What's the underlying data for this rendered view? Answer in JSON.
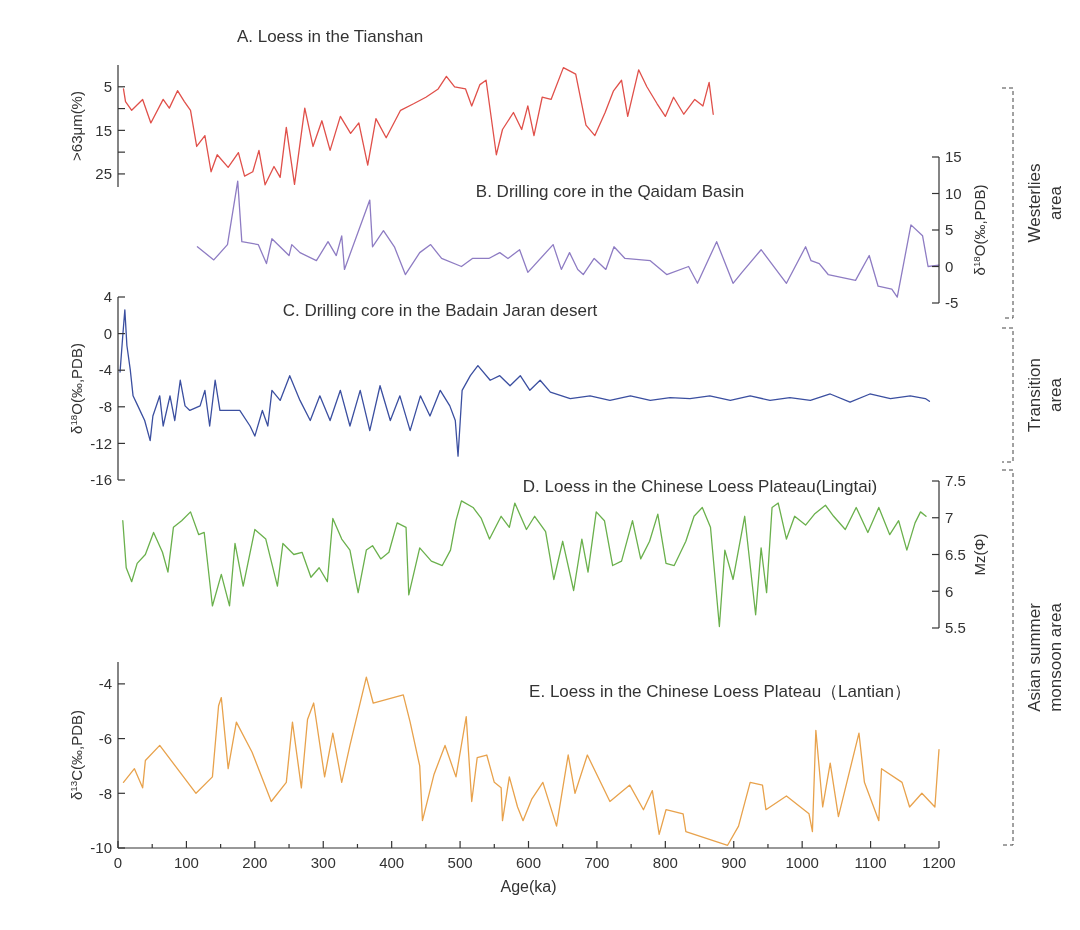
{
  "chart_data": [
    {
      "type": "line",
      "title": "A. Loess in  the Tianshan",
      "ylabel": ">63μm(%)",
      "xlim": [
        0,
        1200
      ],
      "ylim": [
        28,
        0
      ],
      "yticks": [
        5,
        {
          "value": 10,
          "label": null
        },
        15,
        {
          "value": 20,
          "label": null
        },
        25
      ],
      "tick_labels": "y",
      "series": [
        {
          "color": "#e0504a",
          "x": [
            8,
            11,
            20,
            36,
            48,
            66,
            75,
            87,
            97,
            106,
            115,
            127,
            136,
            145,
            161,
            176,
            185,
            197,
            206,
            215,
            228,
            237,
            246,
            258,
            273,
            285,
            298,
            310,
            325,
            340,
            352,
            365,
            377,
            392,
            413,
            432,
            450,
            468,
            480,
            492,
            508,
            517,
            529,
            538,
            553,
            562,
            578,
            590,
            599,
            608,
            620,
            633,
            651,
            669,
            684,
            697,
            712,
            724,
            736,
            745,
            761,
            773,
            788,
            800,
            812,
            827,
            843,
            855,
            864,
            870
          ],
          "values": [
            5.5,
            8.4,
            10.4,
            7.9,
            13.3,
            7.9,
            9.9,
            5.9,
            8.4,
            10.4,
            18.7,
            16.2,
            24.5,
            20.6,
            23.5,
            20.1,
            25.5,
            24.5,
            19.6,
            27.5,
            23.3,
            25.8,
            14.3,
            27.4,
            9.9,
            18.7,
            12.8,
            19.6,
            11.8,
            15.7,
            13.3,
            23,
            12.3,
            16.7,
            10.4,
            8.9,
            7.4,
            5.5,
            2.6,
            5,
            5.5,
            9.4,
            4.5,
            3.5,
            20.6,
            14.8,
            10.9,
            14.8,
            9.4,
            16.2,
            7.4,
            7.9,
            0.6,
            2.1,
            13.8,
            16.2,
            10.9,
            6,
            3.5,
            11.8,
            1.1,
            5,
            8.9,
            11.8,
            7.4,
            11.3,
            7.9,
            9.4,
            4,
            11.3
          ]
        }
      ]
    },
    {
      "type": "line",
      "title": "B. Drilling  core in the Qaidam Basin",
      "y2label": "δ$^{18}$O(‰,PDB)",
      "xlim": [
        0,
        1200
      ],
      "y2lim": [
        -5,
        15
      ],
      "y2ticks": [
        -5,
        0,
        5,
        10,
        15
      ],
      "tick_labels": "y",
      "annotations": [
        "Westerlies area"
      ],
      "series": [
        {
          "color": "#8e7cc3",
          "axis": "y2",
          "x": [
            116,
            140,
            160,
            175,
            181,
            205,
            217,
            225,
            250,
            254,
            266,
            290,
            307,
            319,
            327,
            331,
            368,
            372,
            388,
            404,
            420,
            441,
            457,
            473,
            502,
            518,
            542,
            558,
            570,
            587,
            599,
            636,
            648,
            660,
            672,
            680,
            696,
            713,
            725,
            741,
            778,
            802,
            834,
            847,
            875,
            899,
            912,
            940,
            977,
            1005,
            1013,
            1025,
            1038,
            1078,
            1098,
            1111,
            1131,
            1139,
            1159,
            1176,
            1184,
            1200
          ],
          "values": [
            2.7,
            0.9,
            3,
            11.7,
            3.4,
            3,
            0.4,
            3.8,
            1.5,
            3,
            1.9,
            0.8,
            3.4,
            1.5,
            4.2,
            -0.4,
            9.1,
            2.7,
            4.9,
            2.7,
            -1.1,
            1.9,
            3,
            1.1,
            0,
            1.1,
            1.1,
            1.9,
            1.1,
            2.3,
            -0.8,
            3,
            -0.4,
            1.9,
            -0.4,
            -1.1,
            1.1,
            -0.4,
            2.7,
            1.1,
            0.8,
            -1.1,
            0,
            -2.3,
            3.4,
            -2.3,
            -0.8,
            2.3,
            -2.3,
            2.7,
            0.8,
            0.4,
            -1.1,
            -1.9,
            1.5,
            -2.7,
            -3.1,
            -4.2,
            5.7,
            4.2,
            0,
            0.2
          ]
        }
      ]
    },
    {
      "type": "line",
      "title": "C. Drilling core in the Badain Jaran desert",
      "ylabel": "δ$^{18}$O(‰,PDB)",
      "xlim": [
        0,
        1200
      ],
      "ylim": [
        -16,
        4
      ],
      "yticks": [
        -16,
        -12,
        -8,
        -4,
        0,
        4
      ],
      "tick_labels": "y",
      "annotations": [
        "Transition area"
      ],
      "series": [
        {
          "color": "#3b4fa0",
          "x": [
            3,
            7,
            10,
            13,
            18,
            22,
            29,
            39,
            47,
            51,
            61,
            66,
            76,
            83,
            91,
            98,
            105,
            120,
            127,
            134,
            142,
            149,
            178,
            193,
            200,
            211,
            219,
            225,
            237,
            251,
            266,
            281,
            295,
            310,
            325,
            339,
            354,
            368,
            383,
            398,
            412,
            427,
            442,
            456,
            471,
            485,
            493,
            497,
            503,
            515,
            526,
            544,
            558,
            573,
            588,
            602,
            617,
            632,
            661,
            690,
            719,
            749,
            778,
            807,
            836,
            865,
            895,
            924,
            953,
            982,
            1012,
            1041,
            1070,
            1099,
            1129,
            1158,
            1180,
            1186
          ],
          "values": [
            -4.2,
            -0.2,
            2.6,
            -1.3,
            -4,
            -6.8,
            -7.9,
            -9.5,
            -11.7,
            -9,
            -6.8,
            -10.1,
            -6.8,
            -9.5,
            -5.1,
            -7.9,
            -8.4,
            -7.9,
            -6.2,
            -10.1,
            -5.1,
            -8.4,
            -8.4,
            -10.1,
            -11.2,
            -8.4,
            -10.1,
            -6.2,
            -7.3,
            -4.6,
            -7.3,
            -9.5,
            -6.8,
            -9.5,
            -6.2,
            -10.1,
            -6.2,
            -10.6,
            -5.7,
            -9.5,
            -6.8,
            -10.6,
            -6.8,
            -9,
            -6.2,
            -7.9,
            -9.5,
            -13.4,
            -6.2,
            -4.6,
            -3.5,
            -5.1,
            -4.6,
            -5.7,
            -4.6,
            -6.2,
            -5.1,
            -6.4,
            -7.1,
            -6.8,
            -7.3,
            -6.8,
            -7.3,
            -7,
            -7.1,
            -6.8,
            -7.3,
            -6.8,
            -7.3,
            -7,
            -7.3,
            -6.6,
            -7.5,
            -6.6,
            -7.1,
            -6.8,
            -7.1,
            -7.4
          ]
        }
      ]
    },
    {
      "type": "line",
      "title": "D. Loess in the Chinese Loess Plateau(Lingtai)",
      "y2label": "Mz(Φ)",
      "xlim": [
        0,
        1200
      ],
      "y2lim": [
        5.5,
        7.5
      ],
      "y2ticks": [
        5.5,
        6,
        6.5,
        7,
        7.5
      ],
      "tick_labels": "y",
      "annotations": [
        "Asian summer monsoon area"
      ],
      "series": [
        {
          "color": "#6ab04c",
          "axis": "y2",
          "x": [
            7,
            12,
            20,
            28,
            40,
            52,
            65,
            73,
            81,
            93,
            106,
            118,
            126,
            138,
            151,
            163,
            171,
            183,
            200,
            216,
            233,
            241,
            257,
            269,
            282,
            294,
            306,
            314,
            327,
            339,
            351,
            363,
            372,
            384,
            396,
            408,
            421,
            425,
            441,
            458,
            474,
            486,
            494,
            502,
            519,
            531,
            543,
            560,
            572,
            580,
            597,
            609,
            625,
            637,
            650,
            666,
            678,
            687,
            699,
            711,
            723,
            736,
            752,
            764,
            777,
            789,
            801,
            813,
            830,
            842,
            854,
            866,
            879,
            887,
            899,
            916,
            932,
            940,
            948,
            956,
            965,
            977,
            989,
            1005,
            1018,
            1034,
            1046,
            1063,
            1079,
            1096,
            1112,
            1128,
            1141,
            1153,
            1165,
            1173,
            1181
          ],
          "values": [
            6.96,
            6.32,
            6.13,
            6.38,
            6.5,
            6.8,
            6.53,
            6.26,
            6.87,
            6.96,
            7.08,
            6.77,
            6.8,
            5.8,
            6.23,
            5.8,
            6.65,
            6.07,
            6.84,
            6.71,
            6.07,
            6.65,
            6.5,
            6.53,
            6.19,
            6.32,
            6.13,
            6.99,
            6.71,
            6.56,
            5.98,
            6.56,
            6.62,
            6.44,
            6.53,
            6.93,
            6.87,
            5.95,
            6.59,
            6.41,
            6.35,
            6.56,
            6.96,
            7.23,
            7.14,
            6.99,
            6.71,
            7.02,
            6.87,
            7.2,
            6.84,
            7.02,
            6.81,
            6.16,
            6.68,
            6.01,
            6.71,
            6.26,
            7.08,
            6.96,
            6.35,
            6.41,
            6.96,
            6.44,
            6.68,
            7.05,
            6.38,
            6.35,
            6.68,
            7.02,
            7.14,
            6.87,
            5.52,
            6.56,
            6.16,
            7.02,
            5.68,
            6.59,
            5.98,
            7.14,
            7.2,
            6.71,
            7.02,
            6.9,
            7.05,
            7.17,
            7.02,
            6.84,
            7.14,
            6.8,
            7.14,
            6.77,
            6.96,
            6.56,
            6.93,
            7.08,
            7.02
          ]
        }
      ]
    },
    {
      "type": "line",
      "title": "E. Loess in the Chinese Loess Plateau（Lantian）",
      "ylabel": "δ$^{13}$C(‰,PDB)",
      "xlabel": "Age(ka)",
      "xlim": [
        0,
        1200
      ],
      "xticks": [
        0,
        {
          "value": 50,
          "label": null
        },
        100,
        {
          "value": 150,
          "label": null
        },
        200,
        {
          "value": 250,
          "label": null
        },
        300,
        {
          "value": 350,
          "label": null
        },
        400,
        {
          "value": 450,
          "label": null
        },
        500,
        {
          "value": 550,
          "label": null
        },
        600,
        {
          "value": 650,
          "label": null
        },
        700,
        {
          "value": 750,
          "label": null
        },
        800,
        {
          "value": 850,
          "label": null
        },
        900,
        {
          "value": 950,
          "label": null
        },
        1000,
        {
          "value": 1050,
          "label": null
        },
        1100,
        {
          "value": 1150,
          "label": null
        },
        1200
      ],
      "ylim": [
        -10,
        -3.2
      ],
      "yticks": [
        -10,
        -8,
        -6,
        -4
      ],
      "series": [
        {
          "color": "#e8a24c",
          "x": [
            8,
            24,
            36,
            40,
            61,
            114,
            138,
            147,
            151,
            161,
            173,
            196,
            224,
            246,
            255,
            268,
            277,
            286,
            302,
            314,
            327,
            339,
            363,
            373,
            417,
            427,
            441,
            445,
            462,
            478,
            494,
            509,
            517,
            525,
            539,
            550,
            560,
            562,
            572,
            584,
            592,
            605,
            621,
            641,
            658,
            668,
            686,
            719,
            748,
            768,
            781,
            791,
            801,
            826,
            830,
            891,
            907,
            924,
            942,
            947,
            977,
            1010,
            1015,
            1020,
            1030,
            1041,
            1053,
            1083,
            1091,
            1112,
            1116,
            1146,
            1157,
            1175,
            1194,
            1200
          ],
          "values": [
            -7.6,
            -7.1,
            -7.8,
            -6.8,
            -6.25,
            -8,
            -7.4,
            -4.8,
            -4.5,
            -7.1,
            -5.4,
            -6.5,
            -8.3,
            -7.6,
            -5.4,
            -7.8,
            -5.3,
            -4.7,
            -7.4,
            -5.8,
            -7.6,
            -6.25,
            -3.75,
            -4.7,
            -4.4,
            -5.4,
            -7,
            -9,
            -7.3,
            -6.25,
            -7.4,
            -5.2,
            -8.3,
            -6.7,
            -6.6,
            -7.6,
            -7.8,
            -9,
            -7.4,
            -8.5,
            -9,
            -8.2,
            -7.6,
            -9.2,
            -6.6,
            -8,
            -6.6,
            -8.3,
            -7.7,
            -8.6,
            -7.9,
            -9.5,
            -8.6,
            -8.75,
            -9.4,
            -9.9,
            -9.2,
            -7.6,
            -7.7,
            -8.6,
            -8.1,
            -8.75,
            -9.4,
            -5.7,
            -8.5,
            -6.9,
            -8.85,
            -5.8,
            -7.6,
            -9,
            -7.1,
            -7.6,
            -8.5,
            -8,
            -8.5,
            -6.4
          ]
        }
      ]
    }
  ]
}
